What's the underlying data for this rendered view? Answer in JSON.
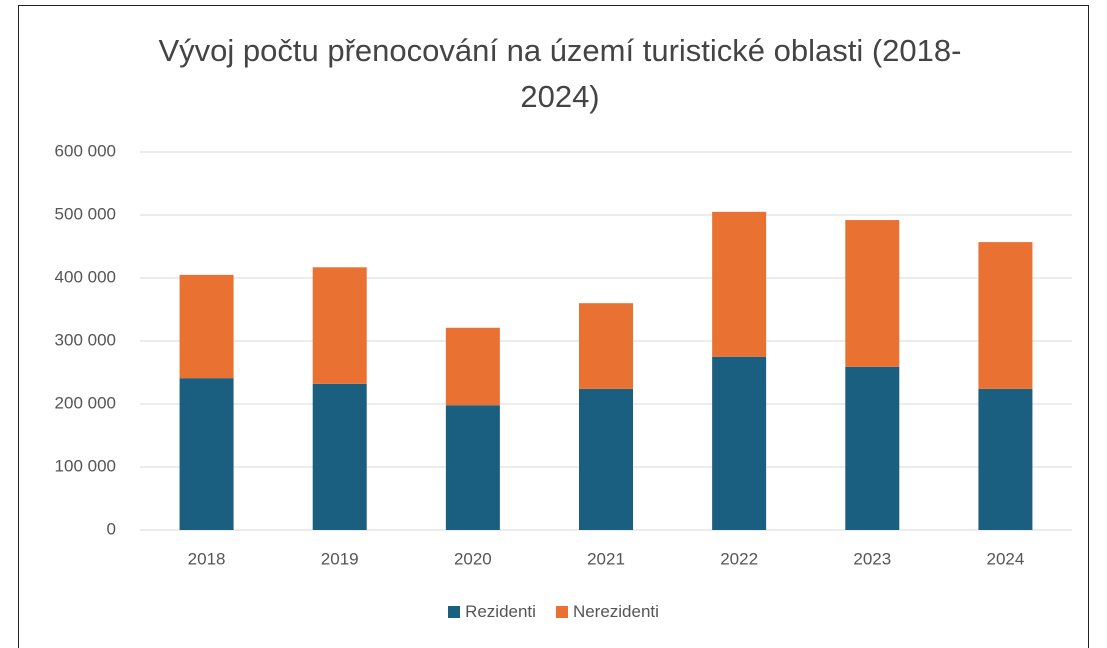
{
  "chart_data": {
    "type": "stacked_bar",
    "title": "Vývoj počtu přenocování na území turistické oblasti (2018-2024)",
    "categories": [
      "2018",
      "2019",
      "2020",
      "2021",
      "2022",
      "2023",
      "2024"
    ],
    "series": [
      {
        "name": "Rezidenti",
        "color": "#1a5e80",
        "values": [
          241000,
          232000,
          198000,
          224000,
          275000,
          259000,
          224000
        ]
      },
      {
        "name": "Nerezidenti",
        "color": "#e97132",
        "values": [
          164000,
          185000,
          123000,
          136000,
          230000,
          233000,
          233000
        ]
      }
    ],
    "ylim": [
      0,
      600000
    ],
    "yticks": [
      0,
      {
        "value": 100000,
        "label": "100 000"
      },
      {
        "value": 200000,
        "label": "200 000"
      },
      {
        "value": 300000,
        "label": "300 000"
      },
      {
        "value": 400000,
        "label": "400 000"
      },
      {
        "value": 500000,
        "label": "500 000"
      },
      {
        "value": 600000,
        "label": "600 000"
      }
    ],
    "grid": true,
    "legend": "bottom"
  }
}
